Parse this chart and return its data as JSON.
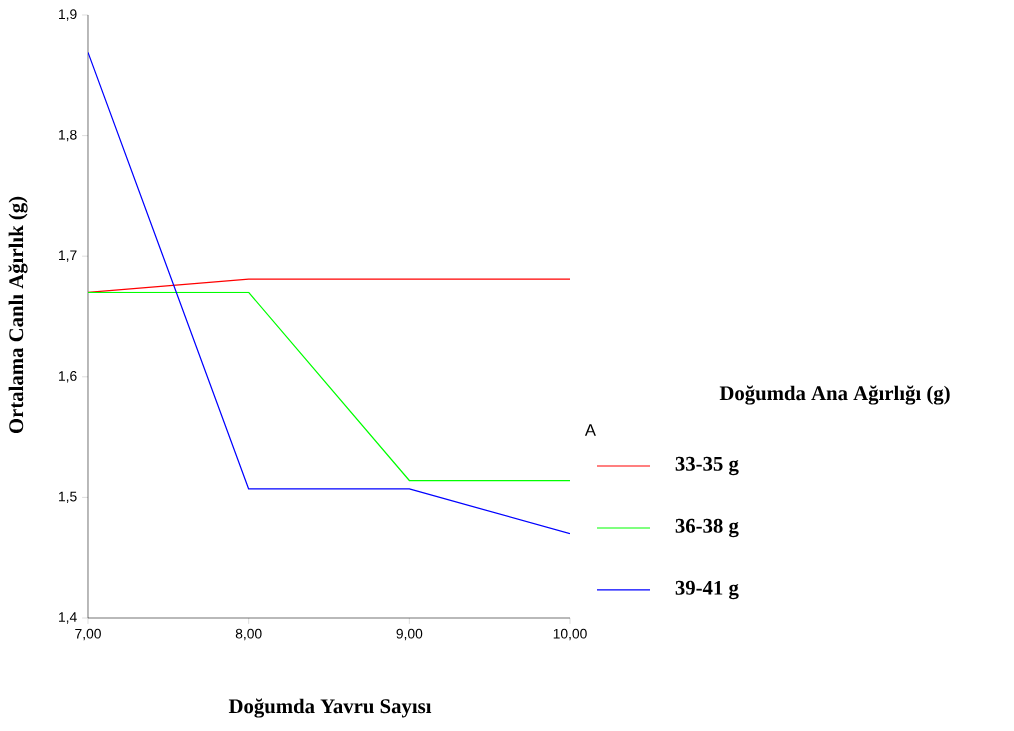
{
  "chart_data": {
    "type": "line",
    "xlabel": "Doğumda Yavru Sayısı",
    "ylabel": "Ortalama Canlı Ağırlık (g)",
    "legend_title": "Doğumda Ana Ağırlığı (g)",
    "annotations": [
      "A"
    ],
    "x": [
      7,
      8,
      9,
      10
    ],
    "series": [
      {
        "name": "33-35 g",
        "color": "#ff0000",
        "values": [
          1.67,
          1.681,
          1.681,
          1.681
        ]
      },
      {
        "name": "36-38 g",
        "color": "#00ff00",
        "values": [
          1.67,
          1.67,
          1.514,
          1.514
        ]
      },
      {
        "name": "39-41 g",
        "color": "#0000ff",
        "values": [
          1.869,
          1.507,
          1.507,
          1.47
        ]
      }
    ],
    "xlim": [
      7,
      10
    ],
    "ylim": [
      1.4,
      1.9
    ],
    "xticks": [
      {
        "value": 7,
        "label": "7,00"
      },
      {
        "value": 8,
        "label": "8,00"
      },
      {
        "value": 9,
        "label": "9,00"
      },
      {
        "value": 10,
        "label": "10,00"
      }
    ],
    "yticks": [
      {
        "value": 1.4,
        "label": "1,4"
      },
      {
        "value": 1.5,
        "label": "1,5"
      },
      {
        "value": 1.6,
        "label": "1,6"
      },
      {
        "value": 1.7,
        "label": "1,7"
      },
      {
        "value": 1.8,
        "label": "1,8"
      },
      {
        "value": 1.9,
        "label": "1,9"
      }
    ],
    "legend": "right",
    "grid": false,
    "marker": "none",
    "line_style": "solid"
  }
}
